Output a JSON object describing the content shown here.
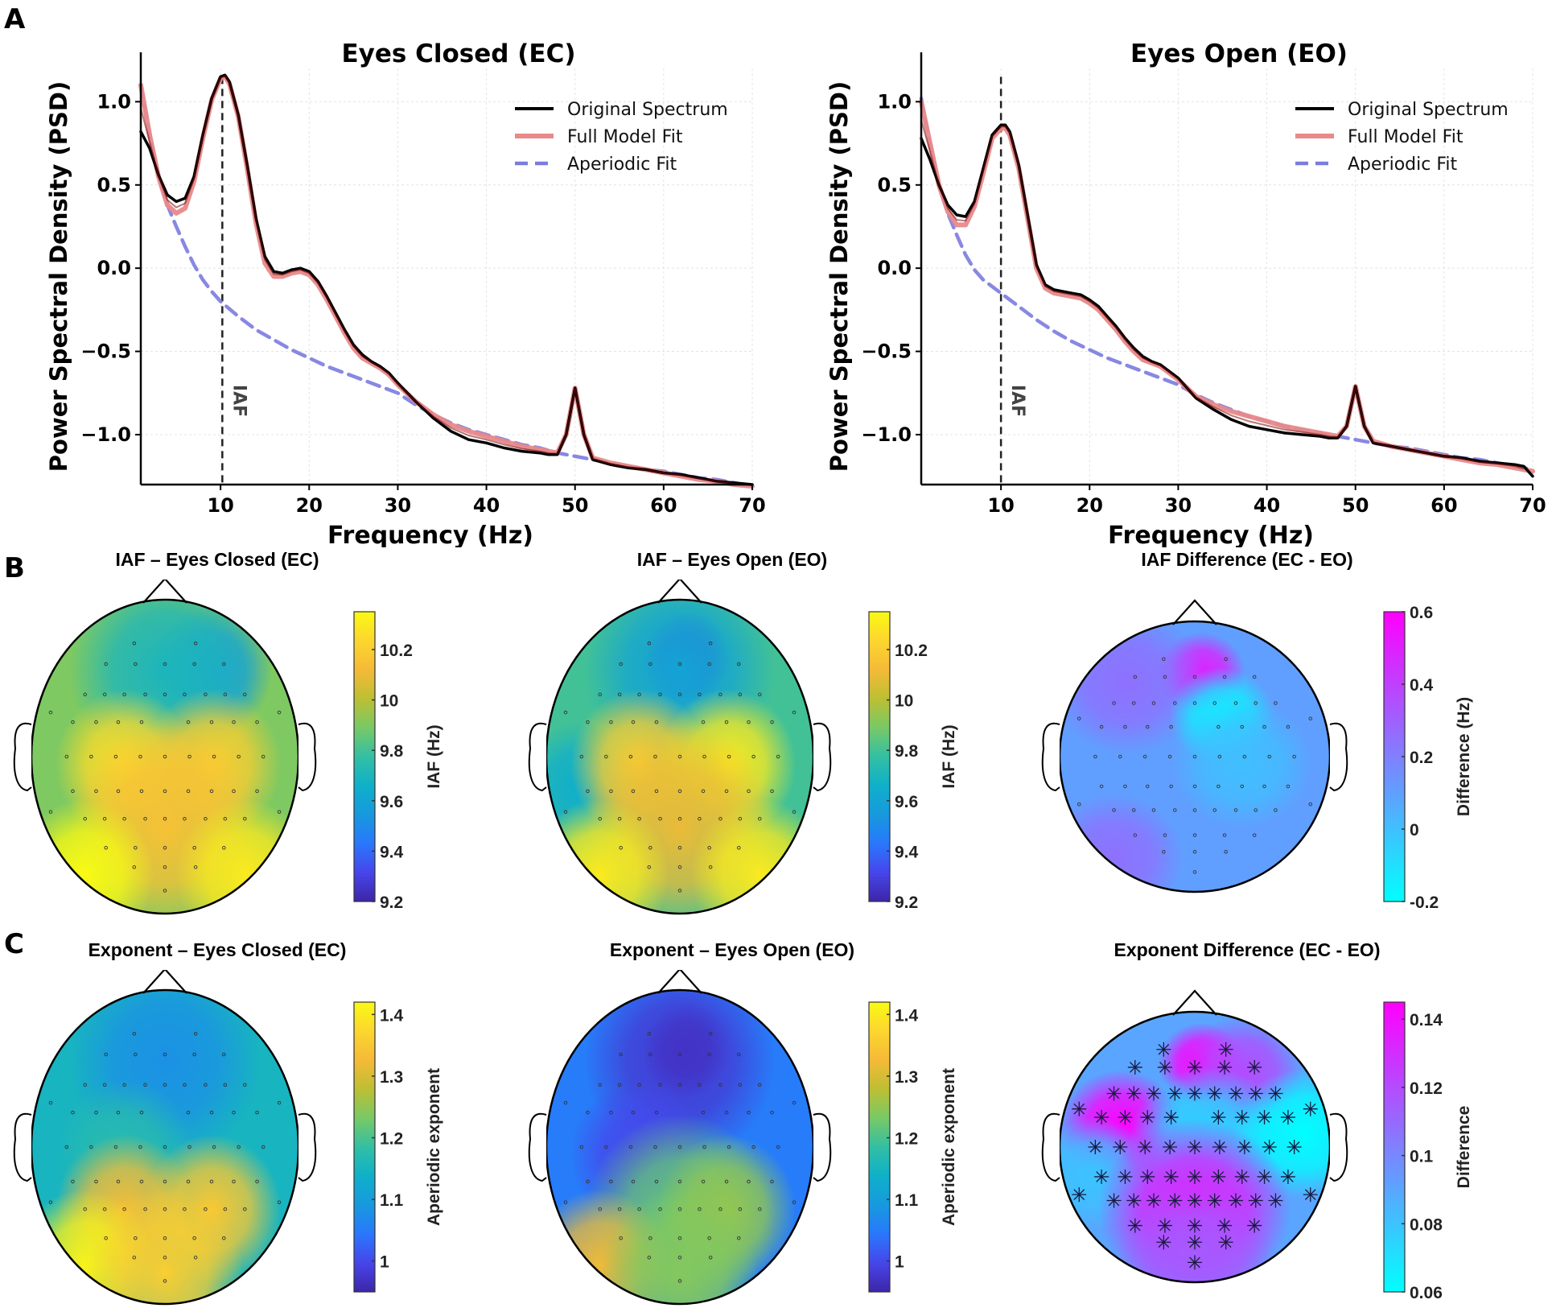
{
  "panels": {
    "A": "A",
    "B": "B",
    "C": "C"
  },
  "chart_data": [
    {
      "id": "psd_ec",
      "type": "line",
      "title": "Eyes Closed (EC)",
      "xlabel": "Frequency (Hz)",
      "ylabel": "Power Spectral Density (PSD)",
      "xlim": [
        1,
        70
      ],
      "ylim": [
        -1.3,
        1.2
      ],
      "xticks": [
        10,
        20,
        30,
        40,
        50,
        60,
        70
      ],
      "yticks": [
        -1.0,
        -0.5,
        0.0,
        0.5,
        1.0
      ],
      "ytick_labels": [
        "−1.0",
        "−0.5",
        "0.0",
        "0.5",
        "1.0"
      ],
      "grid": true,
      "legend_position": "top-right",
      "annotation": {
        "text": "IAF",
        "x": 10.2
      },
      "series": [
        {
          "name": "Original Spectrum",
          "color": "#000000",
          "style": "solid",
          "x": [
            1,
            2,
            3,
            4,
            5,
            6,
            7,
            8,
            9,
            10,
            10.5,
            11,
            12,
            13,
            14,
            15,
            16,
            17,
            18,
            19,
            20,
            21,
            22,
            23,
            24,
            25,
            26,
            27,
            28,
            29,
            30,
            32,
            34,
            36,
            38,
            40,
            42,
            44,
            46,
            47,
            48,
            49,
            50,
            51,
            52,
            54,
            56,
            58,
            60,
            62,
            64,
            66,
            68,
            70
          ],
          "y": [
            0.82,
            0.72,
            0.56,
            0.44,
            0.4,
            0.42,
            0.55,
            0.8,
            1.02,
            1.15,
            1.16,
            1.12,
            0.92,
            0.62,
            0.3,
            0.07,
            -0.02,
            -0.03,
            -0.01,
            0.0,
            -0.02,
            -0.08,
            -0.17,
            -0.27,
            -0.37,
            -0.46,
            -0.52,
            -0.56,
            -0.59,
            -0.63,
            -0.69,
            -0.8,
            -0.9,
            -0.98,
            -1.03,
            -1.05,
            -1.08,
            -1.1,
            -1.11,
            -1.12,
            -1.12,
            -1.0,
            -0.72,
            -1.0,
            -1.15,
            -1.18,
            -1.2,
            -1.21,
            -1.23,
            -1.24,
            -1.26,
            -1.28,
            -1.29,
            -1.3
          ]
        },
        {
          "name": "Full Model Fit",
          "color": "#e8898a",
          "style": "solid",
          "x": [
            1,
            2,
            3,
            4,
            5,
            6,
            7,
            8,
            9,
            10,
            10.5,
            11,
            12,
            13,
            14,
            15,
            16,
            17,
            18,
            19,
            20,
            21,
            22,
            23,
            24,
            25,
            26,
            27,
            28,
            29,
            30,
            32,
            34,
            36,
            38,
            40,
            42,
            44,
            46,
            47,
            48,
            49,
            50,
            51,
            52,
            54,
            56,
            58,
            60,
            62,
            64,
            66,
            68,
            70
          ],
          "y": [
            1.1,
            0.8,
            0.55,
            0.38,
            0.33,
            0.36,
            0.52,
            0.78,
            1.01,
            1.14,
            1.15,
            1.11,
            0.91,
            0.6,
            0.27,
            0.03,
            -0.05,
            -0.05,
            -0.03,
            -0.02,
            -0.04,
            -0.1,
            -0.19,
            -0.29,
            -0.39,
            -0.48,
            -0.54,
            -0.57,
            -0.6,
            -0.64,
            -0.7,
            -0.8,
            -0.88,
            -0.94,
            -0.98,
            -1.01,
            -1.04,
            -1.07,
            -1.09,
            -1.1,
            -1.11,
            -1.0,
            -0.72,
            -1.0,
            -1.14,
            -1.17,
            -1.19,
            -1.21,
            -1.23,
            -1.25,
            -1.27,
            -1.28,
            -1.3,
            -1.31
          ]
        },
        {
          "name": "Aperiodic Fit",
          "color": "#7b7be0",
          "style": "dashed",
          "x": [
            1,
            2,
            3,
            4,
            5,
            6,
            7,
            8,
            9,
            10,
            12,
            14,
            16,
            18,
            20,
            22,
            24,
            26,
            28,
            30,
            32,
            34,
            36,
            38,
            40,
            42,
            44,
            46,
            48,
            50,
            52,
            54,
            56,
            58,
            60,
            62,
            64,
            66,
            68,
            70
          ],
          "y": [
            1.1,
            0.8,
            0.55,
            0.38,
            0.25,
            0.13,
            0.02,
            -0.07,
            -0.14,
            -0.2,
            -0.29,
            -0.37,
            -0.43,
            -0.49,
            -0.54,
            -0.59,
            -0.63,
            -0.67,
            -0.71,
            -0.75,
            -0.82,
            -0.88,
            -0.93,
            -0.97,
            -1.0,
            -1.03,
            -1.06,
            -1.08,
            -1.11,
            -1.13,
            -1.15,
            -1.17,
            -1.19,
            -1.21,
            -1.22,
            -1.24,
            -1.26,
            -1.27,
            -1.29,
            -1.31
          ]
        }
      ]
    },
    {
      "id": "psd_eo",
      "type": "line",
      "title": "Eyes Open (EO)",
      "xlabel": "Frequency (Hz)",
      "ylabel": "Power Spectral Density (PSD)",
      "xlim": [
        1,
        70
      ],
      "ylim": [
        -1.3,
        1.2
      ],
      "xticks": [
        10,
        20,
        30,
        40,
        50,
        60,
        70
      ],
      "yticks": [
        -1.0,
        -0.5,
        0.0,
        0.5,
        1.0
      ],
      "ytick_labels": [
        "−1.0",
        "−0.5",
        "0.0",
        "0.5",
        "1.0"
      ],
      "grid": true,
      "legend_position": "top-right",
      "annotation": {
        "text": "IAF",
        "x": 10.0
      },
      "series": [
        {
          "name": "Original Spectrum",
          "color": "#000000",
          "style": "solid",
          "x": [
            1,
            2,
            3,
            4,
            5,
            6,
            7,
            8,
            9,
            10,
            10.5,
            11,
            12,
            13,
            14,
            15,
            16,
            17,
            18,
            19,
            20,
            21,
            22,
            23,
            24,
            25,
            26,
            27,
            28,
            29,
            30,
            32,
            34,
            36,
            38,
            40,
            42,
            44,
            46,
            47,
            48,
            49,
            50,
            51,
            52,
            54,
            56,
            58,
            60,
            62,
            64,
            66,
            68,
            69,
            70
          ],
          "y": [
            0.78,
            0.65,
            0.5,
            0.38,
            0.32,
            0.31,
            0.4,
            0.6,
            0.8,
            0.86,
            0.86,
            0.82,
            0.62,
            0.32,
            0.02,
            -0.1,
            -0.13,
            -0.14,
            -0.15,
            -0.16,
            -0.19,
            -0.23,
            -0.29,
            -0.35,
            -0.42,
            -0.48,
            -0.53,
            -0.56,
            -0.58,
            -0.62,
            -0.66,
            -0.78,
            -0.85,
            -0.91,
            -0.95,
            -0.97,
            -0.99,
            -1.0,
            -1.01,
            -1.02,
            -1.02,
            -0.95,
            -0.71,
            -0.95,
            -1.05,
            -1.07,
            -1.09,
            -1.11,
            -1.13,
            -1.14,
            -1.16,
            -1.17,
            -1.18,
            -1.19,
            -1.25
          ]
        },
        {
          "name": "Full Model Fit",
          "color": "#e8898a",
          "style": "solid",
          "x": [
            1,
            2,
            3,
            4,
            5,
            6,
            7,
            8,
            9,
            10,
            10.5,
            11,
            12,
            13,
            14,
            15,
            16,
            17,
            18,
            19,
            20,
            21,
            22,
            23,
            24,
            25,
            26,
            27,
            28,
            29,
            30,
            32,
            34,
            36,
            38,
            40,
            42,
            44,
            46,
            47,
            48,
            49,
            50,
            51,
            52,
            54,
            56,
            58,
            60,
            62,
            64,
            66,
            68,
            70
          ],
          "y": [
            1.0,
            0.75,
            0.5,
            0.34,
            0.26,
            0.26,
            0.37,
            0.57,
            0.78,
            0.84,
            0.84,
            0.8,
            0.6,
            0.3,
            0.0,
            -0.12,
            -0.15,
            -0.16,
            -0.17,
            -0.18,
            -0.21,
            -0.25,
            -0.31,
            -0.37,
            -0.44,
            -0.5,
            -0.55,
            -0.57,
            -0.59,
            -0.63,
            -0.67,
            -0.77,
            -0.82,
            -0.86,
            -0.89,
            -0.92,
            -0.95,
            -0.97,
            -0.99,
            -1.0,
            -1.01,
            -0.95,
            -0.71,
            -0.95,
            -1.04,
            -1.07,
            -1.09,
            -1.11,
            -1.13,
            -1.15,
            -1.17,
            -1.18,
            -1.2,
            -1.22
          ]
        },
        {
          "name": "Aperiodic Fit",
          "color": "#7b7be0",
          "style": "dashed",
          "x": [
            1,
            2,
            3,
            4,
            5,
            6,
            7,
            8,
            9,
            10,
            12,
            14,
            16,
            18,
            20,
            22,
            24,
            26,
            28,
            30,
            32,
            34,
            36,
            38,
            40,
            42,
            44,
            46,
            48,
            50,
            52,
            54,
            56,
            58,
            60,
            62,
            64,
            66,
            68,
            70
          ],
          "y": [
            1.02,
            0.74,
            0.5,
            0.33,
            0.2,
            0.08,
            -0.01,
            -0.07,
            -0.11,
            -0.15,
            -0.23,
            -0.31,
            -0.38,
            -0.44,
            -0.49,
            -0.54,
            -0.58,
            -0.62,
            -0.66,
            -0.7,
            -0.76,
            -0.81,
            -0.85,
            -0.89,
            -0.92,
            -0.95,
            -0.97,
            -0.99,
            -1.01,
            -1.03,
            -1.05,
            -1.07,
            -1.08,
            -1.1,
            -1.12,
            -1.14,
            -1.15,
            -1.17,
            -1.19,
            -1.21
          ]
        }
      ]
    },
    {
      "id": "topo_iaf_ec",
      "type": "heatmap",
      "title": "IAF – Eyes Closed (EC)",
      "colorbar_label": "IAF (Hz)",
      "colormap": "parula",
      "clim": [
        9.2,
        10.35
      ],
      "cbar_ticks": [
        "10.2",
        "10",
        "9.8",
        "9.6",
        "9.4",
        "9.2"
      ],
      "cbar_tick_values": [
        10.2,
        10.0,
        9.8,
        9.6,
        9.4,
        9.2
      ],
      "base_value": 9.9,
      "blobs": [
        {
          "region": "frontal-right",
          "value": 9.55
        },
        {
          "region": "frontal",
          "value": 9.7
        },
        {
          "region": "central-left",
          "value": 10.25
        },
        {
          "region": "central-right",
          "value": 10.2
        },
        {
          "region": "parietal",
          "value": 10.15
        },
        {
          "region": "occipital-left",
          "value": 10.35
        },
        {
          "region": "occipital-right",
          "value": 10.3
        }
      ],
      "markers": "dots"
    },
    {
      "id": "topo_iaf_eo",
      "type": "heatmap",
      "title": "IAF – Eyes Open (EO)",
      "colorbar_label": "IAF (Hz)",
      "colormap": "parula",
      "clim": [
        9.2,
        10.35
      ],
      "cbar_ticks": [
        "10.2",
        "10",
        "9.8",
        "9.6",
        "9.4",
        "9.2"
      ],
      "cbar_tick_values": [
        10.2,
        10.0,
        9.8,
        9.6,
        9.4,
        9.2
      ],
      "base_value": 9.8,
      "blobs": [
        {
          "region": "frontal-midline",
          "value": 9.3
        },
        {
          "region": "frontal",
          "value": 9.6
        },
        {
          "region": "temporal-left",
          "value": 9.65
        },
        {
          "region": "central-left",
          "value": 10.2
        },
        {
          "region": "central-right",
          "value": 10.3
        },
        {
          "region": "parietal",
          "value": 10.1
        },
        {
          "region": "occipital-left",
          "value": 10.3
        },
        {
          "region": "occipital-right",
          "value": 10.3
        }
      ],
      "markers": "dots"
    },
    {
      "id": "topo_iaf_diff",
      "type": "heatmap",
      "title": "IAF Difference (EC - EO)",
      "colorbar_label": "Difference (Hz)",
      "colormap": "cool",
      "clim": [
        -0.2,
        0.6
      ],
      "cbar_ticks": [
        "0.6",
        "0.4",
        "0.2",
        "0",
        "-0.2"
      ],
      "cbar_tick_values": [
        0.6,
        0.4,
        0.2,
        0.0,
        -0.2
      ],
      "base_value": 0.1,
      "blobs": [
        {
          "region": "frontal-midline",
          "value": 0.5
        },
        {
          "region": "frontal-left",
          "value": 0.25
        },
        {
          "region": "frontocentral-right",
          "value": -0.15
        },
        {
          "region": "central-right",
          "value": 0.0
        },
        {
          "region": "occipital-left",
          "value": 0.25
        }
      ],
      "markers": "dots"
    },
    {
      "id": "topo_exp_ec",
      "type": "heatmap",
      "title": "Exponent – Eyes Closed (EC)",
      "colorbar_label": "Aperiodic exponent",
      "colormap": "parula",
      "clim": [
        0.95,
        1.42
      ],
      "cbar_ticks": [
        "1.4",
        "1.3",
        "1.2",
        "1.1",
        "1"
      ],
      "cbar_tick_values": [
        1.4,
        1.3,
        1.2,
        1.1,
        1.0
      ],
      "base_value": 1.15,
      "blobs": [
        {
          "region": "frontal",
          "value": 1.08
        },
        {
          "region": "central-left",
          "value": 1.17
        },
        {
          "region": "parietal-left",
          "value": 1.33
        },
        {
          "region": "parietal-right",
          "value": 1.35
        },
        {
          "region": "occipital-left",
          "value": 1.41
        },
        {
          "region": "occipital",
          "value": 1.36
        }
      ],
      "markers": "dots"
    },
    {
      "id": "topo_exp_eo",
      "type": "heatmap",
      "title": "Exponent – Eyes Open (EO)",
      "colorbar_label": "Aperiodic exponent",
      "colormap": "parula",
      "clim": [
        0.95,
        1.42
      ],
      "cbar_ticks": [
        "1.4",
        "1.3",
        "1.2",
        "1.1",
        "1"
      ],
      "cbar_tick_values": [
        1.4,
        1.3,
        1.2,
        1.1,
        1.0
      ],
      "base_value": 1.05,
      "blobs": [
        {
          "region": "frontal",
          "value": 0.98
        },
        {
          "region": "frontal-midline",
          "value": 0.97
        },
        {
          "region": "central-left",
          "value": 1.0
        },
        {
          "region": "parietal",
          "value": 1.22
        },
        {
          "region": "parietal-right",
          "value": 1.25
        },
        {
          "region": "occipital-left",
          "value": 1.32
        },
        {
          "region": "occipital",
          "value": 1.24
        }
      ],
      "markers": "dots"
    },
    {
      "id": "topo_exp_diff",
      "type": "heatmap",
      "title": "Exponent Difference (EC - EO)",
      "colorbar_label": "Difference",
      "colormap": "cool",
      "clim": [
        0.06,
        0.145
      ],
      "cbar_ticks": [
        "0.14",
        "0.12",
        "0.1",
        "0.08",
        "0.06"
      ],
      "cbar_tick_values": [
        0.14,
        0.12,
        0.1,
        0.08,
        0.06
      ],
      "base_value": 0.09,
      "blobs": [
        {
          "region": "frontal-midline",
          "value": 0.145
        },
        {
          "region": "frontal-right",
          "value": 0.12
        },
        {
          "region": "frontocentral-left",
          "value": 0.145
        },
        {
          "region": "central",
          "value": 0.075
        },
        {
          "region": "temporal-right",
          "value": 0.06
        },
        {
          "region": "temporal-left",
          "value": 0.08
        },
        {
          "region": "parietal",
          "value": 0.135
        },
        {
          "region": "occipital",
          "value": 0.115
        }
      ],
      "markers": "asterisks"
    }
  ]
}
